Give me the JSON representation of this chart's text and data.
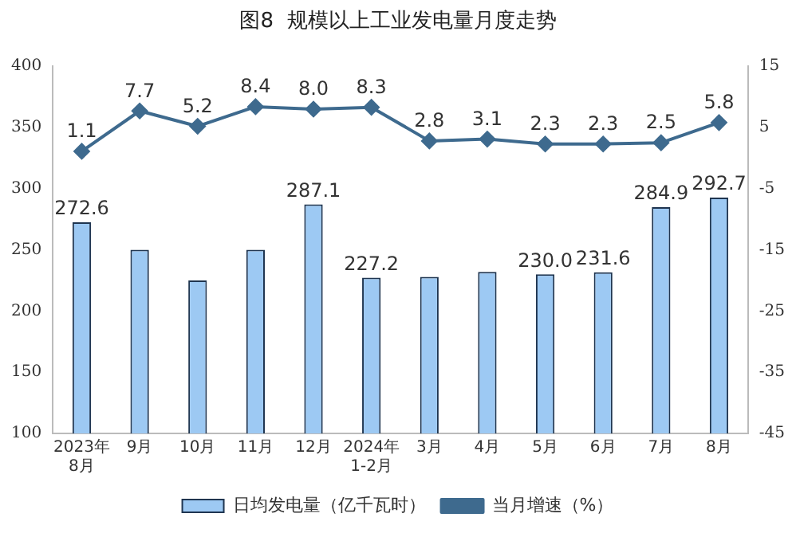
{
  "chart_data": {
    "type": "bar",
    "title": "图8  规模以上工业发电量月度走势",
    "categories": [
      "2023年\n8月",
      "9月",
      "10月",
      "11月",
      "12月",
      "2024年\n1-2月",
      "3月",
      "4月",
      "5月",
      "6月",
      "7月",
      "8月"
    ],
    "series": [
      {
        "name": "日均发电量（亿千瓦时）",
        "color": "#9dc9f3",
        "values": [
          272.6,
          250,
          225,
          250,
          287.1,
          227.2,
          228,
          232,
          230.0,
          231.6,
          284.9,
          292.7
        ],
        "value_labels": [
          "272.6",
          null,
          null,
          null,
          "287.1",
          "227.2",
          null,
          null,
          "230.0",
          "231.6",
          "284.9",
          "292.7"
        ]
      },
      {
        "name": "当月增速（%）",
        "type": "line",
        "axis": "y2",
        "color": "#3e6a8e",
        "values": [
          1.1,
          7.7,
          5.2,
          8.4,
          8.0,
          8.3,
          2.8,
          3.1,
          2.3,
          2.3,
          2.5,
          5.8
        ],
        "value_labels": [
          "1.1",
          "7.7",
          "5.2",
          "8.4",
          "8.0",
          "8.3",
          "2.8",
          "3.1",
          "2.3",
          "2.3",
          "2.5",
          "5.8"
        ]
      }
    ],
    "ylim": [
      100,
      400
    ],
    "yticks": [
      100,
      150,
      200,
      250,
      300,
      350,
      400
    ],
    "y2lim": [
      -45,
      15
    ],
    "y2ticks": [
      -45,
      -35,
      -25,
      -15,
      -5,
      5,
      15
    ],
    "grid": false,
    "legend": "bottom",
    "marker": "diamond"
  }
}
